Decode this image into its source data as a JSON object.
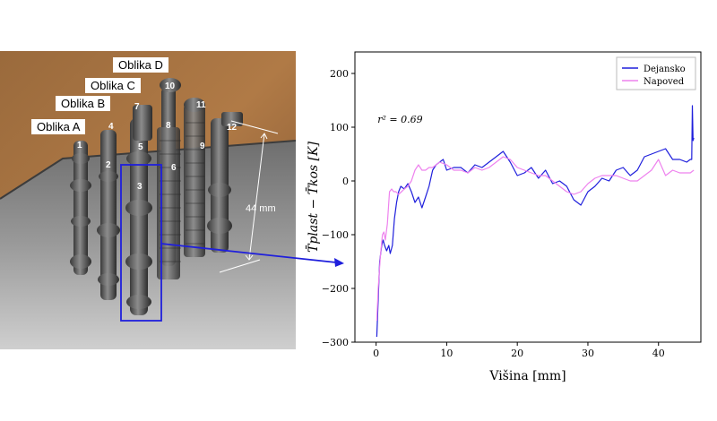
{
  "photo": {
    "shape_labels": [
      "Oblika A",
      "Oblika B",
      "Oblika C",
      "Oblika D"
    ],
    "pin_labels": [
      "1",
      "2",
      "3",
      "4",
      "5",
      "6",
      "7",
      "8",
      "9",
      "10",
      "11",
      "12"
    ],
    "dimension_label": "44 mm"
  },
  "chart_data": {
    "type": "line",
    "xlabel": "Višina [mm]",
    "ylabel": "T̄plast − T̄kos [K]",
    "xlim": [
      -3,
      46
    ],
    "ylim": [
      -300,
      240
    ],
    "xticks": [
      0,
      10,
      20,
      30,
      40
    ],
    "yticks": [
      -300,
      -200,
      -100,
      0,
      100,
      200
    ],
    "grid": false,
    "legend_position": "top-right",
    "annotation": "r² = 0.69",
    "series": [
      {
        "name": "Dejansko",
        "color": "#1f1fdc",
        "x": [
          0.1,
          0.3,
          0.5,
          0.8,
          1.0,
          1.2,
          1.5,
          1.8,
          2.0,
          2.3,
          2.6,
          2.9,
          3.2,
          3.5,
          4.0,
          4.5,
          5.0,
          5.5,
          6.0,
          6.5,
          7.0,
          7.5,
          8.0,
          8.5,
          9.0,
          9.5,
          10.0,
          11.0,
          12.0,
          13.0,
          14.0,
          15.0,
          16.0,
          17.0,
          18.0,
          19.0,
          20.0,
          21.0,
          22.0,
          23.0,
          24.0,
          25.0,
          26.0,
          27.0,
          28.0,
          29.0,
          30.0,
          31.0,
          32.0,
          33.0,
          34.0,
          35.0,
          36.0,
          37.0,
          38.0,
          39.0,
          40.0,
          41.0,
          42.0,
          43.0,
          44.0,
          44.5,
          44.7,
          44.8,
          44.9,
          45.0
        ],
        "y": [
          -290,
          -220,
          -150,
          -120,
          -110,
          -120,
          -130,
          -120,
          -135,
          -120,
          -70,
          -40,
          -20,
          -10,
          -15,
          -5,
          -20,
          -40,
          -30,
          -50,
          -30,
          -10,
          20,
          30,
          35,
          40,
          20,
          25,
          25,
          15,
          30,
          25,
          35,
          45,
          55,
          35,
          10,
          15,
          25,
          5,
          20,
          -5,
          0,
          -10,
          -35,
          -45,
          -20,
          -10,
          5,
          0,
          20,
          25,
          10,
          20,
          45,
          50,
          55,
          60,
          40,
          40,
          35,
          40,
          40,
          140,
          75,
          80
        ]
      },
      {
        "name": "Napoved",
        "color": "#ee82ee",
        "x": [
          0.1,
          0.3,
          0.6,
          0.9,
          1.1,
          1.3,
          1.6,
          1.9,
          2.2,
          2.5,
          2.8,
          3.2,
          3.6,
          4.0,
          4.5,
          5.0,
          5.5,
          6.0,
          6.5,
          7.0,
          7.5,
          8.0,
          9.0,
          10.0,
          11.0,
          12.0,
          13.0,
          14.0,
          15.0,
          16.0,
          17.0,
          18.0,
          19.0,
          20.0,
          21.0,
          22.0,
          23.0,
          24.0,
          25.0,
          26.0,
          27.0,
          28.0,
          29.0,
          30.0,
          31.0,
          32.0,
          33.0,
          34.0,
          35.0,
          36.0,
          37.0,
          38.0,
          39.0,
          40.0,
          41.0,
          42.0,
          43.0,
          44.0,
          44.5,
          45.0
        ],
        "y": [
          -260,
          -200,
          -140,
          -100,
          -95,
          -110,
          -80,
          -20,
          -15,
          -20,
          -20,
          -25,
          -20,
          -15,
          -10,
          0,
          20,
          30,
          20,
          20,
          25,
          25,
          35,
          30,
          20,
          20,
          15,
          25,
          20,
          25,
          35,
          45,
          40,
          25,
          20,
          15,
          10,
          10,
          0,
          -10,
          -20,
          -25,
          -20,
          -5,
          5,
          10,
          10,
          10,
          5,
          0,
          0,
          10,
          20,
          40,
          10,
          20,
          15,
          15,
          15,
          20
        ]
      }
    ]
  }
}
